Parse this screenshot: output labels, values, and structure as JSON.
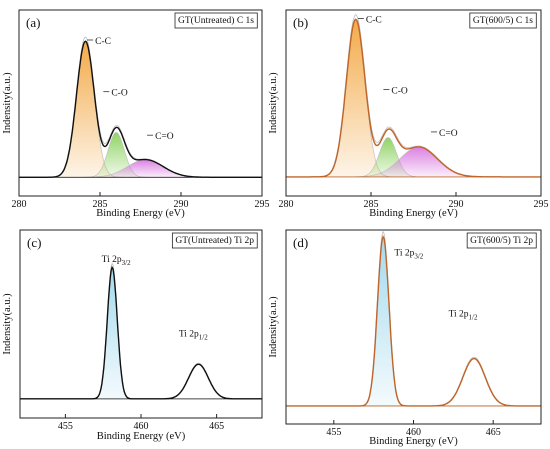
{
  "chart_data": [
    {
      "type": "line",
      "panel": "(a)",
      "title": "GT(Untreated)  C 1s",
      "xlabel": "Binding Energy (eV)",
      "ylabel": "Indensity(a.u.)",
      "xlim": [
        280,
        295
      ],
      "xticks": [
        280,
        285,
        290,
        295
      ],
      "ylim": [
        0,
        1.25
      ],
      "grid": false,
      "envelope_color": "#111111",
      "baseline": 0.02,
      "series": [
        {
          "center": 284.1,
          "height": 1.0,
          "width": 0.55,
          "color": "#f2a640"
        },
        {
          "center": 286.0,
          "height": 0.33,
          "width": 0.5,
          "color": "#8bd15e"
        },
        {
          "center": 287.8,
          "height": 0.13,
          "width": 1.1,
          "color": "#d97ae0"
        }
      ],
      "annotations": [
        {
          "text": "C-C",
          "x": 284.7,
          "y": 1.0
        },
        {
          "text": "C-O",
          "x": 285.7,
          "y": 0.62
        },
        {
          "text": "C=O",
          "x": 288.4,
          "y": 0.3
        }
      ]
    },
    {
      "type": "line",
      "panel": "(b)",
      "title": "GT(600/5)  C 1s",
      "xlabel": "Binding Energy (eV)",
      "ylabel": "Indensity(a.u.)",
      "xlim": [
        280,
        295
      ],
      "xticks": [
        280,
        285,
        290,
        295
      ],
      "ylim": [
        0,
        1.08
      ],
      "grid": false,
      "envelope_color": "#c0652a",
      "baseline": 0.02,
      "series": [
        {
          "center": 284.1,
          "height": 1.0,
          "width": 0.55,
          "color": "#f2a640"
        },
        {
          "center": 286.0,
          "height": 0.25,
          "width": 0.5,
          "color": "#8bd15e"
        },
        {
          "center": 287.8,
          "height": 0.19,
          "width": 1.1,
          "color": "#d97ae0"
        }
      ],
      "annotations": [
        {
          "text": "C-C",
          "x": 284.7,
          "y": 1.0
        },
        {
          "text": "C-O",
          "x": 286.2,
          "y": 0.55
        },
        {
          "text": "C=O",
          "x": 289.0,
          "y": 0.28
        }
      ]
    },
    {
      "type": "line",
      "panel": "(c)",
      "title": "GT(Untreated)  Ti 2p",
      "xlabel": "Binding Energy (eV)",
      "ylabel": "Indensity(a.u.)",
      "xlim": [
        452,
        468
      ],
      "xticks": [
        455,
        460,
        465
      ],
      "ylim": [
        0,
        1.25
      ],
      "grid": false,
      "envelope_color": "#111111",
      "baseline": 0.03,
      "series": [
        {
          "center": 458.1,
          "height": 0.95,
          "width": 0.33,
          "color": "#9fd8ec"
        },
        {
          "center": 463.8,
          "height": 0.25,
          "width": 0.65,
          "color": "#ffffff"
        }
      ],
      "annotations": [
        {
          "text": "Ti 2p",
          "sub": "3/2",
          "x": 457.4,
          "y": 1.02
        },
        {
          "text": "Ti 2p",
          "sub": "1/2",
          "x": 462.5,
          "y": 0.48
        }
      ]
    },
    {
      "type": "line",
      "panel": "(d)",
      "title": "GT(600/5)  Ti 2p",
      "xlabel": "Binding Energy (eV)",
      "ylabel": "Indensity(a.u.)",
      "xlim": [
        452,
        468
      ],
      "xticks": [
        455,
        460,
        465
      ],
      "ylim": [
        0,
        1.07
      ],
      "grid": false,
      "envelope_color": "#c0652a",
      "baseline": 0.03,
      "series": [
        {
          "center": 458.1,
          "height": 1.0,
          "width": 0.36,
          "color": "#9fd8ec"
        },
        {
          "center": 463.8,
          "height": 0.28,
          "width": 0.7,
          "color": "#ffffff"
        }
      ],
      "annotations": [
        {
          "text": "Ti 2p",
          "sub": "3/2",
          "x": 458.8,
          "y": 0.92
        },
        {
          "text": "Ti 2p",
          "sub": "1/2",
          "x": 462.2,
          "y": 0.56
        }
      ]
    }
  ]
}
